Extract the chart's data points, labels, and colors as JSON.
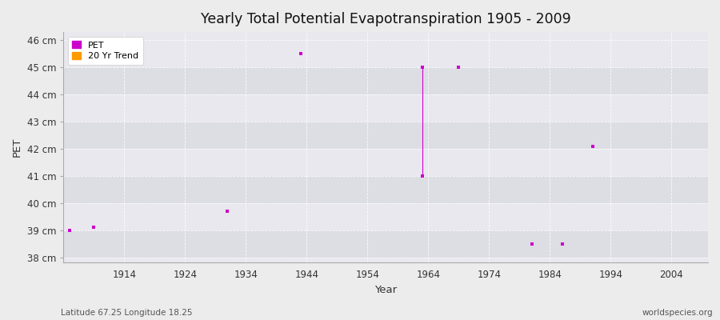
{
  "title": "Yearly Total Potential Evapotranspiration 1905 - 2009",
  "xlabel": "Year",
  "ylabel": "PET",
  "footnote_left": "Latitude 67.25 Longitude 18.25",
  "footnote_right": "worldspecies.org",
  "xlim": [
    1904,
    2010
  ],
  "ylim": [
    37.8,
    46.3
  ],
  "yticks": [
    38,
    39,
    40,
    41,
    42,
    43,
    44,
    45,
    46
  ],
  "ytick_labels": [
    "38 cm",
    "39 cm",
    "40 cm",
    "41 cm",
    "42 cm",
    "43 cm",
    "44 cm",
    "45 cm",
    "46 cm"
  ],
  "xticks": [
    1914,
    1924,
    1934,
    1944,
    1954,
    1964,
    1974,
    1984,
    1994,
    2004
  ],
  "background_color": "#ececec",
  "band_color_light": "#e8e8ee",
  "band_color_dark": "#dddde4",
  "grid_color": "#ffffff",
  "pet_color": "#cc00cc",
  "trend_color": "#ff9900",
  "pet_points": [
    [
      1905,
      39.0
    ],
    [
      1909,
      39.1
    ],
    [
      1931,
      39.7
    ],
    [
      1943,
      45.5
    ],
    [
      1963,
      45.0
    ],
    [
      1963,
      41.0
    ],
    [
      1969,
      45.0
    ],
    [
      1981,
      38.5
    ],
    [
      1986,
      38.5
    ],
    [
      1991,
      42.1
    ]
  ],
  "pet_lines": [
    [
      [
        1963,
        45.0
      ],
      [
        1963,
        41.0
      ]
    ]
  ],
  "legend_entries": [
    "PET",
    "20 Yr Trend"
  ]
}
